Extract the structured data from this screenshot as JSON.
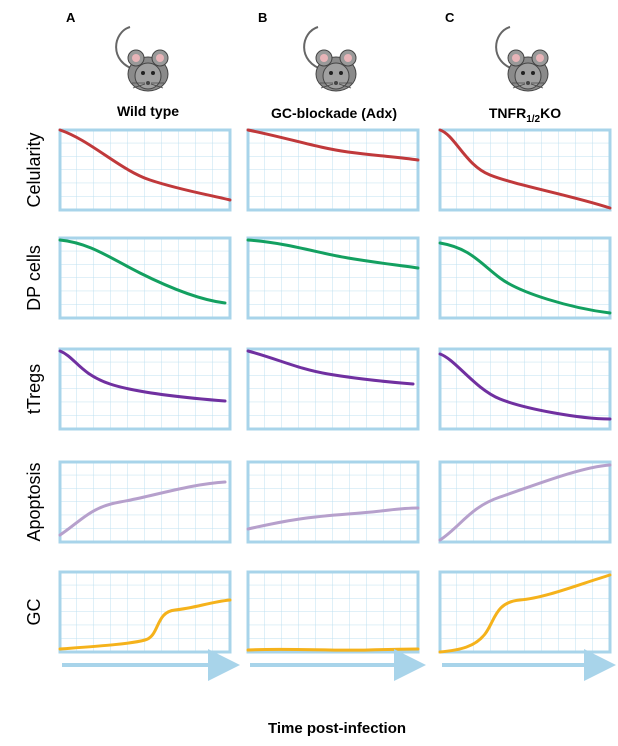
{
  "columns": [
    {
      "letter": "A",
      "title": "Wild type"
    },
    {
      "letter": "B",
      "title": "GC-blockade (Adx)"
    },
    {
      "letter": "C",
      "title": {
        "main": "TNFR",
        "sub": "1/2",
        "suffix": "KO"
      }
    }
  ],
  "rows": [
    "Celularity",
    "DP cells",
    "tTregs",
    "Apoptosis",
    "GC"
  ],
  "x_axis_label": "Time post-infection"
}
